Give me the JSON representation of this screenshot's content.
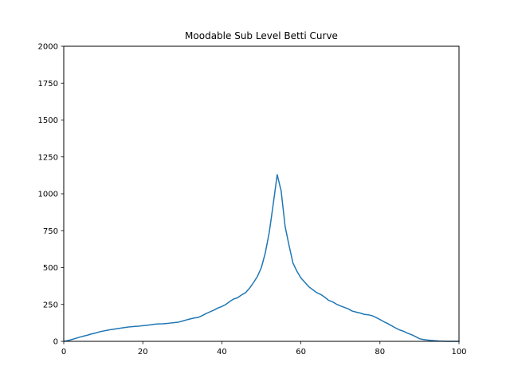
{
  "chart_data": {
    "type": "line",
    "title": "Moodable Sub Level Betti Curve",
    "xlabel": "",
    "ylabel": "",
    "xlim": [
      0,
      100
    ],
    "ylim": [
      0,
      2000
    ],
    "x_ticks": [
      "0",
      "20",
      "40",
      "60",
      "80",
      "100"
    ],
    "y_ticks": [
      "0",
      "250",
      "500",
      "750",
      "1000",
      "1250",
      "1500",
      "1750",
      "2000"
    ],
    "grid": false,
    "legend": "none",
    "series_color": "#1f77b4",
    "series": [
      {
        "x": [
          0,
          1,
          2,
          3,
          4,
          5,
          6,
          7,
          8,
          9,
          10,
          11,
          12,
          13,
          14,
          15,
          16,
          17,
          18,
          19,
          20,
          21,
          22,
          23,
          24,
          25,
          26,
          27,
          28,
          29,
          30,
          31,
          32,
          33,
          34,
          35,
          36,
          37,
          38,
          39,
          40,
          41,
          42,
          43,
          44,
          45,
          46,
          47,
          48,
          49,
          50,
          51,
          52,
          53,
          54,
          55,
          56,
          57,
          58,
          59,
          60,
          61,
          62,
          63,
          64,
          65,
          66,
          67,
          68,
          69,
          70,
          71,
          72,
          73,
          74,
          75,
          76,
          77,
          78,
          79,
          80,
          81,
          82,
          83,
          84,
          85,
          86,
          87,
          88,
          89,
          90,
          91,
          92,
          93,
          94,
          95,
          96,
          97,
          98,
          99,
          100
        ],
        "values": [
          0,
          5,
          12,
          20,
          28,
          35,
          42,
          50,
          56,
          64,
          70,
          75,
          80,
          84,
          88,
          92,
          96,
          99,
          101,
          103,
          106,
          109,
          112,
          116,
          118,
          119,
          121,
          124,
          127,
          130,
          137,
          145,
          152,
          158,
          162,
          174,
          188,
          200,
          212,
          226,
          236,
          250,
          270,
          287,
          296,
          315,
          330,
          360,
          398,
          440,
          500,
          600,
          740,
          930,
          1130,
          1020,
          780,
          650,
          530,
          475,
          430,
          400,
          370,
          350,
          330,
          318,
          300,
          278,
          268,
          252,
          240,
          230,
          220,
          205,
          198,
          192,
          183,
          180,
          174,
          162,
          148,
          133,
          120,
          105,
          90,
          77,
          68,
          55,
          45,
          32,
          18,
          12,
          9,
          6,
          4,
          2,
          1,
          0,
          0,
          0,
          0
        ]
      }
    ]
  }
}
